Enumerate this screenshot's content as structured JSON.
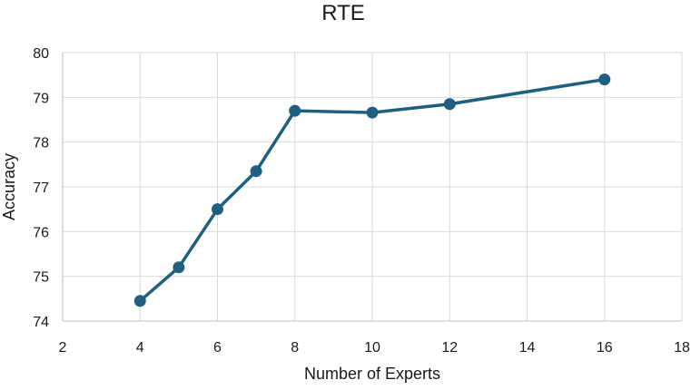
{
  "chart_data": {
    "type": "line",
    "title": "RTE",
    "xlabel": "Number of Experts",
    "ylabel": "Accuracy",
    "xlim": [
      2,
      18
    ],
    "ylim": [
      74,
      80
    ],
    "xticks": [
      2,
      4,
      6,
      8,
      10,
      12,
      14,
      16,
      18
    ],
    "yticks": [
      74,
      75,
      76,
      77,
      78,
      79,
      80
    ],
    "grid": true,
    "legend": "none",
    "series": [
      {
        "color": "#1f5f7f",
        "x": [
          4,
          5,
          6,
          7,
          8,
          10,
          12,
          16
        ],
        "y": [
          74.45,
          75.2,
          76.5,
          77.35,
          78.7,
          78.66,
          78.85,
          79.4
        ]
      }
    ]
  }
}
